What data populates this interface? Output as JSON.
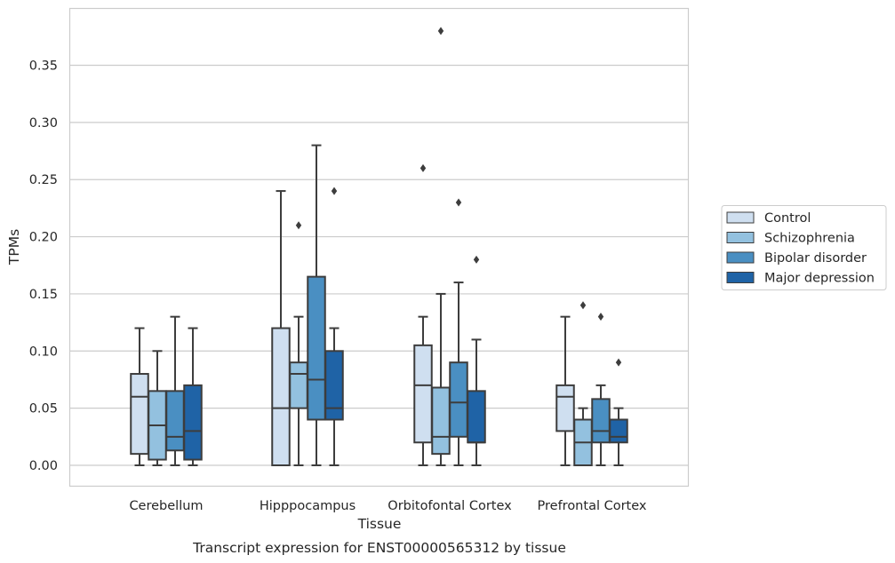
{
  "chart_data": {
    "type": "box",
    "xlabel": "Tissue",
    "ylabel": "TPMs",
    "caption": "Transcript expression for ENST00000565312 by tissue",
    "ylim": [
      -0.018,
      0.399
    ],
    "yticks": [
      0.0,
      0.05,
      0.1,
      0.15,
      0.2,
      0.25,
      0.3,
      0.35
    ],
    "ytick_labels": [
      "0.00",
      "0.05",
      "0.10",
      "0.15",
      "0.20",
      "0.25",
      "0.30",
      "0.35"
    ],
    "grid": "horizontal",
    "legend_position": "right",
    "categories": [
      "Cerebellum",
      "Hipppocampus",
      "Orbitofontal Cortex",
      "Prefrontal Cortex"
    ],
    "series": [
      {
        "name": "Control",
        "color": "#cfdff0",
        "boxes": [
          {
            "whislo": 0.0,
            "q1": 0.01,
            "med": 0.06,
            "q3": 0.08,
            "whishi": 0.12,
            "fliers": []
          },
          {
            "whislo": 0.0,
            "q1": 0.0,
            "med": 0.05,
            "q3": 0.12,
            "whishi": 0.24,
            "fliers": []
          },
          {
            "whislo": 0.0,
            "q1": 0.02,
            "med": 0.07,
            "q3": 0.105,
            "whishi": 0.13,
            "fliers": [
              0.26
            ]
          },
          {
            "whislo": 0.0,
            "q1": 0.03,
            "med": 0.06,
            "q3": 0.07,
            "whishi": 0.13,
            "fliers": []
          }
        ]
      },
      {
        "name": "Schizophrenia",
        "color": "#93c1df",
        "boxes": [
          {
            "whislo": 0.0,
            "q1": 0.005,
            "med": 0.035,
            "q3": 0.065,
            "whishi": 0.1,
            "fliers": []
          },
          {
            "whislo": 0.0,
            "q1": 0.05,
            "med": 0.08,
            "q3": 0.09,
            "whishi": 0.13,
            "fliers": [
              0.21
            ]
          },
          {
            "whislo": 0.0,
            "q1": 0.01,
            "med": 0.025,
            "q3": 0.068,
            "whishi": 0.15,
            "fliers": [
              0.38
            ]
          },
          {
            "whislo": 0.0,
            "q1": 0.0,
            "med": 0.02,
            "q3": 0.04,
            "whishi": 0.05,
            "fliers": [
              0.14
            ]
          }
        ]
      },
      {
        "name": "Bipolar disorder",
        "color": "#4a8fc2",
        "boxes": [
          {
            "whislo": 0.0,
            "q1": 0.013,
            "med": 0.025,
            "q3": 0.065,
            "whishi": 0.13,
            "fliers": []
          },
          {
            "whislo": 0.0,
            "q1": 0.04,
            "med": 0.075,
            "q3": 0.165,
            "whishi": 0.28,
            "fliers": []
          },
          {
            "whislo": 0.0,
            "q1": 0.025,
            "med": 0.055,
            "q3": 0.09,
            "whishi": 0.16,
            "fliers": [
              0.23
            ]
          },
          {
            "whislo": 0.0,
            "q1": 0.02,
            "med": 0.03,
            "q3": 0.058,
            "whishi": 0.07,
            "fliers": [
              0.13
            ]
          }
        ]
      },
      {
        "name": "Major depression",
        "color": "#1f63a6",
        "boxes": [
          {
            "whislo": 0.0,
            "q1": 0.005,
            "med": 0.03,
            "q3": 0.07,
            "whishi": 0.12,
            "fliers": []
          },
          {
            "whislo": 0.0,
            "q1": 0.04,
            "med": 0.05,
            "q3": 0.1,
            "whishi": 0.12,
            "fliers": [
              0.24
            ]
          },
          {
            "whislo": 0.0,
            "q1": 0.02,
            "med": 0.02,
            "q3": 0.065,
            "whishi": 0.11,
            "fliers": [
              0.18
            ]
          },
          {
            "whislo": 0.0,
            "q1": 0.02,
            "med": 0.025,
            "q3": 0.04,
            "whishi": 0.05,
            "fliers": [
              0.09
            ]
          }
        ]
      }
    ]
  }
}
